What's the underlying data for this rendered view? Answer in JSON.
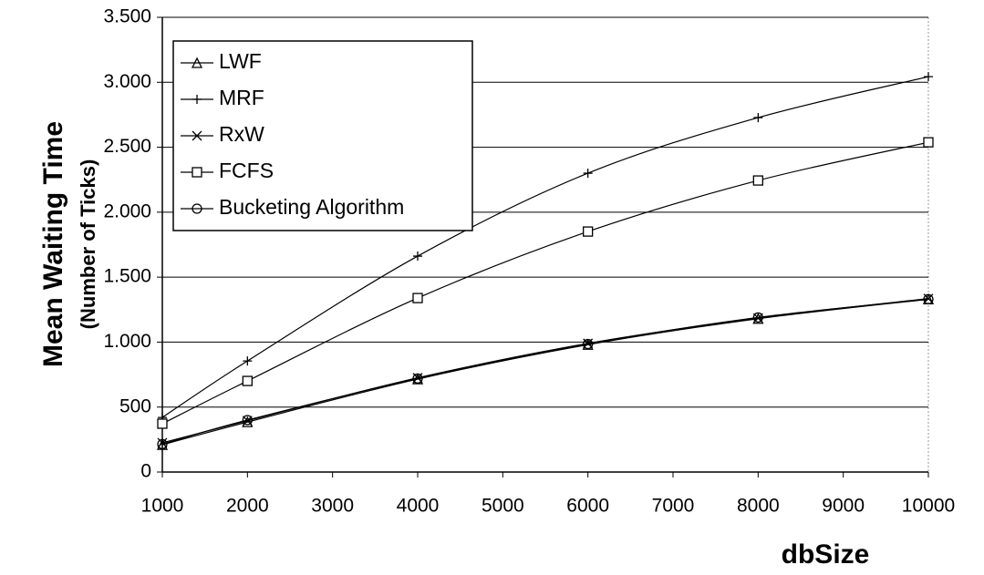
{
  "chart_data": {
    "type": "line",
    "y_label": "Mean Waiting Time",
    "y_sublabel": "(Number of Ticks)",
    "x_label": "dbSize",
    "x": [
      1000,
      2000,
      4000,
      6000,
      8000,
      10000
    ],
    "xlim": [
      1000,
      10000
    ],
    "xticks": [
      1000,
      2000,
      3000,
      4000,
      5000,
      6000,
      7000,
      8000,
      9000,
      10000
    ],
    "ylim": [
      0,
      3500
    ],
    "yticks": [
      0,
      500,
      {
        "value": 1000,
        "label": "1.000"
      },
      {
        "value": 1500,
        "label": "1.500"
      },
      {
        "value": 2000,
        "label": "2.000"
      },
      {
        "value": 2500,
        "label": "2.500"
      },
      {
        "value": 3000,
        "label": "3.000"
      },
      {
        "value": 3500,
        "label": "3.500"
      }
    ],
    "grid": true,
    "legend": "top-left",
    "series": [
      {
        "name": "LWF",
        "color": "#000000",
        "marker": "triangle",
        "values": [
          210,
          385,
          715,
          980,
          1180,
          1330
        ]
      },
      {
        "name": "MRF",
        "color": "#000000",
        "marker": "plus",
        "values": [
          420,
          855,
          1662,
          2300,
          2728,
          3043
        ]
      },
      {
        "name": "RxW",
        "color": "#000000",
        "marker": "x",
        "values": [
          225,
          395,
          725,
          990,
          1185,
          1335
        ]
      },
      {
        "name": "FCFS",
        "color": "#000000",
        "marker": "square",
        "values": [
          372,
          701,
          1339,
          1851,
          2244,
          2538
        ]
      },
      {
        "name": "Bucketing Algorithm",
        "color": "#000000",
        "marker": "circle",
        "values": [
          215,
          400,
          720,
          985,
          1190,
          1330
        ]
      }
    ]
  }
}
